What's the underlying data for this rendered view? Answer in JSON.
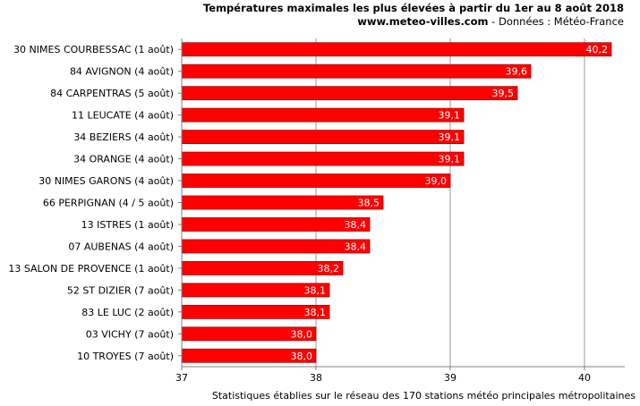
{
  "chart_data": {
    "type": "bar",
    "orientation": "horizontal",
    "title": "Températures maximales les plus élevées à partir du 1er au 8 août 2018",
    "subtitle_site": "www.meteo-villes.com",
    "subtitle_source": " - Données : Météo-France",
    "footnote": "Statistiques établies sur le réseau des 170 stations météo principales métropolitaines",
    "categories": [
      "30 NIMES COURBESSAC (1 août)",
      "84 AVIGNON (4 août)",
      "84 CARPENTRAS (5 août)",
      "11 LEUCATE (4 août)",
      "34 BEZIERS (4 août)",
      "34 ORANGE (4 août)",
      "30 NIMES GARONS (4 août)",
      "66 PERPIGNAN (4 / 5 août)",
      "13 ISTRES (1 août)",
      "07 AUBENAS (4 août)",
      "13 SALON DE PROVENCE (1 août)",
      "52 ST DIZIER (7 août)",
      "83 LE LUC (2 août)",
      "03 VICHY (7 août)",
      "10 TROYES (7 août)"
    ],
    "values": [
      40.2,
      39.6,
      39.5,
      39.1,
      39.1,
      39.1,
      39.0,
      38.5,
      38.4,
      38.4,
      38.2,
      38.1,
      38.1,
      38.0,
      38.0
    ],
    "data_labels": [
      "40,2",
      "39,6",
      "39,5",
      "39,1",
      "39,1",
      "39,1",
      "39,0",
      "38,5",
      "38,4",
      "38,4",
      "38,2",
      "38,1",
      "38,1",
      "38,0",
      "38,0"
    ],
    "xlim": [
      37,
      40.3
    ],
    "xticks": [
      37,
      38,
      39,
      40
    ],
    "xtick_labels": [
      "37",
      "38",
      "39",
      "40"
    ],
    "grid": "vertical",
    "bar_color": "#ff0000",
    "bar_edge_color": "#a80000",
    "grid_color": "#999999"
  }
}
